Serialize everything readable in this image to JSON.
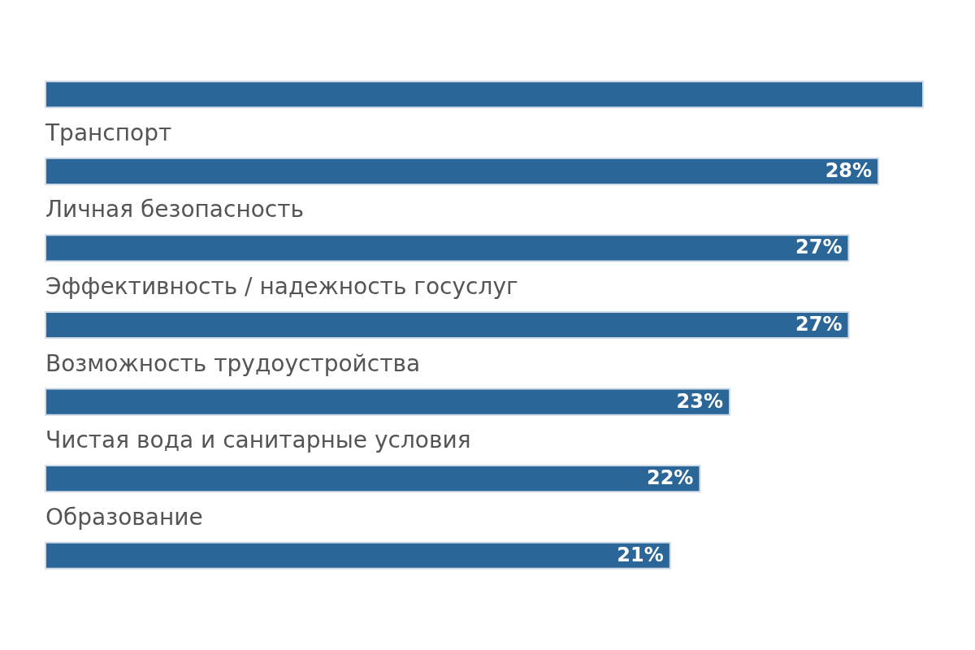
{
  "chart_data": {
    "type": "bar",
    "orientation": "horizontal",
    "categories": [
      null,
      "Транспорт",
      "Личная безопасность",
      "Эффективность / надежность госуслуг",
      "Возможность трудоустройства",
      "Чистая вода и санитарные условия",
      "Образование"
    ],
    "series": [
      {
        "color": "#2b6699",
        "values": [
          29.5,
          28,
          27,
          27,
          23,
          22,
          21
        ],
        "value_labels": [
          null,
          "28%",
          "27%",
          "27%",
          "23%",
          "22%",
          "21%"
        ]
      }
    ]
  }
}
